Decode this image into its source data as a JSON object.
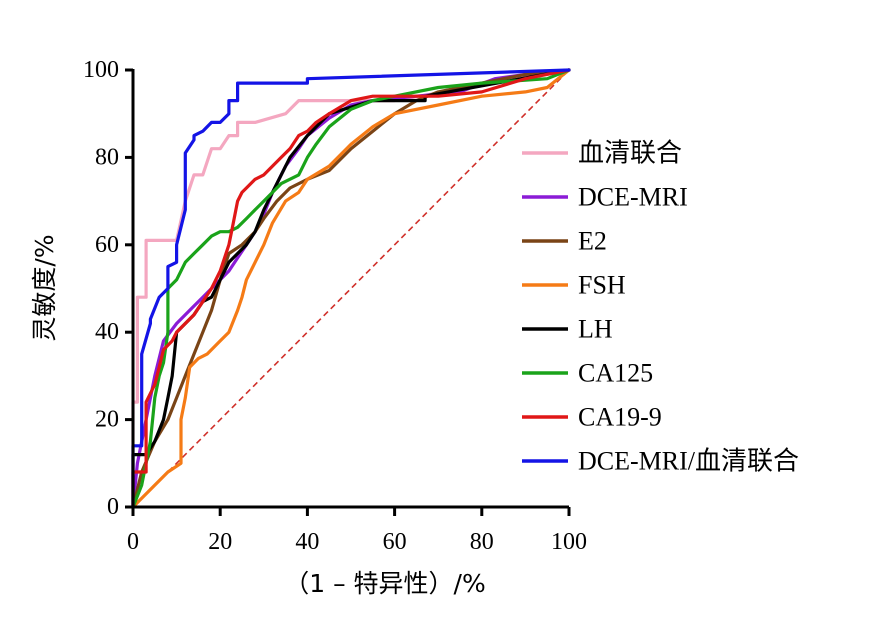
{
  "chart_data": {
    "type": "line",
    "title": "",
    "xlabel": "（1 – 特异性）/%",
    "ylabel": "灵敏度/%",
    "xlim": [
      0,
      100
    ],
    "ylim": [
      0,
      100
    ],
    "xticks": [
      "0",
      "20",
      "40",
      "60",
      "80",
      "100"
    ],
    "yticks": [
      "0",
      "20",
      "40",
      "60",
      "80",
      "100"
    ],
    "grid": false,
    "legend_position": "right",
    "reference_line": {
      "style": "dashed",
      "color": "#d0302a",
      "x": [
        0,
        100
      ],
      "y": [
        0,
        100
      ]
    },
    "series": [
      {
        "name": "血清联合",
        "color": "#f4a7c0",
        "x": [
          0,
          0,
          1,
          1,
          3,
          3,
          8,
          10,
          10,
          12,
          14,
          16,
          18,
          20,
          22,
          24,
          24,
          28,
          35,
          38,
          45,
          60,
          100
        ],
        "y": [
          0,
          24,
          24,
          48,
          48,
          61,
          61,
          61,
          61,
          70,
          76,
          76,
          82,
          82,
          85,
          85,
          88,
          88,
          90,
          93,
          93,
          93,
          100
        ]
      },
      {
        "name": "DCE-MRI",
        "color": "#8b1bd6",
        "x": [
          0,
          1,
          3,
          5,
          7,
          10,
          12,
          14,
          16,
          18,
          20,
          22,
          24,
          26,
          28,
          30,
          32,
          35,
          38,
          40,
          45,
          50,
          55,
          65,
          75,
          83,
          90,
          100
        ],
        "y": [
          0,
          10,
          20,
          30,
          38,
          42,
          44,
          46,
          48,
          50,
          52,
          54,
          57,
          60,
          63,
          67,
          72,
          78,
          82,
          85,
          89,
          92,
          93,
          94,
          95,
          98,
          99,
          100
        ]
      },
      {
        "name": "E2",
        "color": "#7a4416",
        "x": [
          0,
          2,
          5,
          8,
          10,
          12,
          14,
          16,
          18,
          20,
          22,
          25,
          28,
          30,
          33,
          36,
          40,
          45,
          50,
          55,
          60,
          65,
          70,
          80,
          90,
          100
        ],
        "y": [
          0,
          8,
          15,
          20,
          25,
          30,
          35,
          40,
          45,
          52,
          58,
          60,
          63,
          66,
          70,
          73,
          75,
          77,
          82,
          86,
          90,
          93,
          95,
          97,
          99,
          100
        ]
      },
      {
        "name": "FSH",
        "color": "#f57b16",
        "x": [
          0,
          5,
          8,
          11,
          11,
          12,
          13,
          15,
          17,
          20,
          22,
          24,
          25,
          26,
          28,
          30,
          32,
          35,
          38,
          40,
          45,
          50,
          55,
          60,
          70,
          80,
          90,
          95,
          100
        ],
        "y": [
          0,
          5,
          8,
          10,
          20,
          25,
          32,
          34,
          35,
          38,
          40,
          45,
          48,
          52,
          56,
          60,
          65,
          70,
          72,
          75,
          78,
          83,
          87,
          90,
          92,
          94,
          95,
          96,
          100
        ]
      },
      {
        "name": "LH",
        "color": "#000000",
        "x": [
          0,
          0,
          3,
          5,
          7,
          8,
          9,
          10,
          12,
          14,
          16,
          18,
          20,
          22,
          24,
          26,
          28,
          30,
          32,
          34,
          36,
          40,
          45,
          55,
          67,
          67,
          100
        ],
        "y": [
          0,
          12,
          12,
          15,
          20,
          25,
          30,
          40,
          42,
          44,
          47,
          48,
          52,
          56,
          58,
          60,
          63,
          68,
          72,
          76,
          80,
          85,
          90,
          93,
          93,
          94,
          100
        ]
      },
      {
        "name": "CA125",
        "color": "#1aa31a",
        "x": [
          0,
          2,
          4,
          5,
          6,
          7,
          8,
          8,
          10,
          12,
          14,
          16,
          18,
          20,
          22,
          24,
          26,
          28,
          30,
          32,
          34,
          38,
          40,
          42,
          45,
          50,
          55,
          60,
          70,
          80,
          95,
          100
        ],
        "y": [
          0,
          5,
          15,
          25,
          30,
          33,
          40,
          50,
          52,
          56,
          58,
          60,
          62,
          63,
          63,
          64,
          66,
          68,
          70,
          72,
          74,
          76,
          80,
          83,
          87,
          91,
          93,
          94,
          96,
          97,
          98,
          100
        ]
      },
      {
        "name": "CA19-9",
        "color": "#e01717",
        "x": [
          0,
          0,
          3,
          3,
          5,
          6,
          7,
          8,
          9,
          10,
          12,
          14,
          16,
          18,
          20,
          22,
          23,
          24,
          25,
          26,
          28,
          30,
          32,
          34,
          36,
          38,
          40,
          42,
          45,
          50,
          55,
          60,
          70,
          80,
          90,
          100
        ],
        "y": [
          0,
          8,
          8,
          24,
          28,
          32,
          36,
          37,
          38,
          40,
          42,
          44,
          47,
          50,
          54,
          60,
          65,
          70,
          72,
          73,
          75,
          76,
          78,
          80,
          82,
          85,
          86,
          88,
          90,
          93,
          94,
          94,
          94,
          95,
          98,
          100
        ]
      },
      {
        "name": "DCE-MRI/血清联合",
        "color": "#1414e6",
        "x": [
          0,
          0,
          2,
          2,
          4,
          4,
          6,
          8,
          8,
          10,
          10,
          12,
          12,
          14,
          14,
          16,
          18,
          20,
          22,
          22,
          24,
          24,
          40,
          40,
          100
        ],
        "y": [
          0,
          14,
          14,
          35,
          42,
          43,
          48,
          50,
          55,
          56,
          60,
          68,
          81,
          84,
          85,
          86,
          88,
          88,
          90,
          93,
          93,
          97,
          97,
          98,
          100
        ]
      }
    ]
  }
}
